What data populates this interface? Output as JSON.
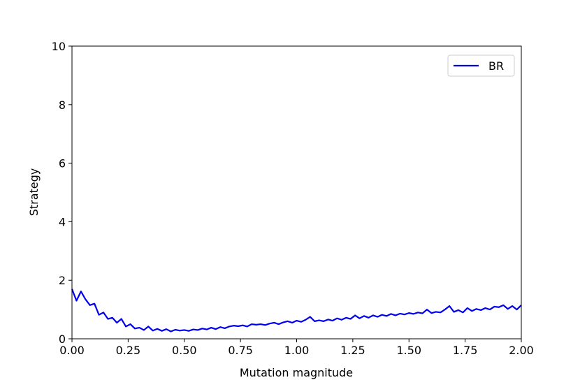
{
  "chart_data": {
    "type": "line",
    "xlabel": "Mutation magnitude",
    "ylabel": "Strategy",
    "x": [
      0.0,
      0.02,
      0.04,
      0.06,
      0.08,
      0.1,
      0.12,
      0.14,
      0.16,
      0.18,
      0.2,
      0.22,
      0.24,
      0.26,
      0.28,
      0.3,
      0.32,
      0.34,
      0.36,
      0.38,
      0.4,
      0.42,
      0.44,
      0.46,
      0.48,
      0.5,
      0.52,
      0.54,
      0.56,
      0.58,
      0.6,
      0.62,
      0.64,
      0.66,
      0.68,
      0.7,
      0.72,
      0.74,
      0.76,
      0.78,
      0.8,
      0.82,
      0.84,
      0.86,
      0.88,
      0.9,
      0.92,
      0.94,
      0.96,
      0.98,
      1.0,
      1.02,
      1.04,
      1.06,
      1.08,
      1.1,
      1.12,
      1.14,
      1.16,
      1.18,
      1.2,
      1.22,
      1.24,
      1.26,
      1.28,
      1.3,
      1.32,
      1.34,
      1.36,
      1.38,
      1.4,
      1.42,
      1.44,
      1.46,
      1.48,
      1.5,
      1.52,
      1.54,
      1.56,
      1.58,
      1.6,
      1.62,
      1.64,
      1.66,
      1.68,
      1.7,
      1.72,
      1.74,
      1.76,
      1.78,
      1.8,
      1.82,
      1.84,
      1.86,
      1.88,
      1.9,
      1.92,
      1.94,
      1.96,
      1.98,
      2.0
    ],
    "series": [
      {
        "name": "BR",
        "color": "#0000ee",
        "values": [
          1.7,
          1.3,
          1.62,
          1.35,
          1.15,
          1.2,
          0.82,
          0.9,
          0.68,
          0.72,
          0.55,
          0.68,
          0.42,
          0.5,
          0.35,
          0.38,
          0.3,
          0.42,
          0.28,
          0.34,
          0.27,
          0.33,
          0.25,
          0.31,
          0.28,
          0.3,
          0.27,
          0.32,
          0.3,
          0.35,
          0.32,
          0.38,
          0.33,
          0.4,
          0.36,
          0.42,
          0.45,
          0.43,
          0.46,
          0.42,
          0.5,
          0.48,
          0.5,
          0.47,
          0.52,
          0.55,
          0.5,
          0.56,
          0.6,
          0.55,
          0.62,
          0.58,
          0.65,
          0.75,
          0.6,
          0.63,
          0.6,
          0.66,
          0.62,
          0.7,
          0.65,
          0.72,
          0.68,
          0.8,
          0.7,
          0.78,
          0.72,
          0.8,
          0.75,
          0.82,
          0.78,
          0.85,
          0.8,
          0.86,
          0.83,
          0.88,
          0.85,
          0.9,
          0.87,
          1.0,
          0.88,
          0.92,
          0.9,
          1.0,
          1.12,
          0.92,
          0.98,
          0.9,
          1.05,
          0.95,
          1.02,
          0.98,
          1.05,
          1.0,
          1.1,
          1.08,
          1.15,
          1.02,
          1.12,
          1.0,
          1.15
        ]
      }
    ],
    "xlim": [
      0,
      2
    ],
    "ylim": [
      0,
      10
    ],
    "xticks": [
      {
        "value": 0,
        "label": "0.00"
      },
      {
        "value": 0.25,
        "label": "0.25"
      },
      {
        "value": 0.5,
        "label": "0.50"
      },
      {
        "value": 0.75,
        "label": "0.75"
      },
      {
        "value": 1,
        "label": "1.00"
      },
      {
        "value": 1.25,
        "label": "1.25"
      },
      {
        "value": 1.5,
        "label": "1.50"
      },
      {
        "value": 1.75,
        "label": "1.75"
      },
      {
        "value": 2,
        "label": "2.00"
      }
    ],
    "yticks": [
      0,
      2,
      4,
      6,
      8,
      10
    ],
    "legend": "upper right"
  }
}
